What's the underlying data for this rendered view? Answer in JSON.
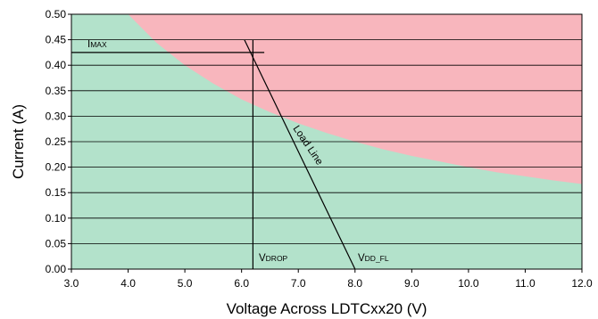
{
  "chart_data": {
    "type": "area",
    "xlabel": "Voltage Across LDTCxx20 (V)",
    "ylabel": "Current (A)",
    "xlim": [
      3.0,
      12.0
    ],
    "ylim": [
      0.0,
      0.5
    ],
    "x_ticks": [
      "3.0",
      "4.0",
      "5.0",
      "6.0",
      "7.0",
      "8.0",
      "9.0",
      "10.0",
      "11.0",
      "12.0"
    ],
    "y_ticks": [
      "0.00",
      "0.05",
      "0.10",
      "0.15",
      "0.20",
      "0.25",
      "0.30",
      "0.35",
      "0.40",
      "0.45",
      "0.50"
    ],
    "grid": "horizontal",
    "colors": {
      "safe_region": "#b3e2cb",
      "unsafe_region": "#f8b6bd",
      "lines": "#000000"
    },
    "regions": [
      {
        "label": "",
        "area": "below power limit curve",
        "color": "#b3e2cb"
      },
      {
        "label": "",
        "area": "above power limit curve",
        "color": "#f8b6bd"
      }
    ],
    "power_limit_curve": {
      "x": [
        3.0,
        3.5,
        4.0,
        4.5,
        5.0,
        5.5,
        6.0,
        6.5,
        7.0,
        7.5,
        8.0,
        8.5,
        9.0,
        9.5,
        10.0,
        10.5,
        11.0,
        11.5,
        12.0
      ],
      "y": [
        0.5,
        0.5,
        0.5,
        0.444,
        0.4,
        0.364,
        0.333,
        0.308,
        0.286,
        0.267,
        0.25,
        0.235,
        0.222,
        0.211,
        0.2,
        0.19,
        0.182,
        0.174,
        0.167
      ]
    },
    "load_line": {
      "label": "Load Line",
      "x": [
        6.05,
        8.0
      ],
      "y": [
        0.45,
        0.0
      ]
    },
    "imax_line": {
      "y": 0.425,
      "x_range": [
        3.0,
        6.4
      ]
    },
    "vdrop_line": {
      "x": 6.2,
      "y_range": [
        0.0,
        0.45
      ]
    },
    "annotations": {
      "imax_main": "I",
      "imax_sub": "MAX",
      "vdrop_main": "V",
      "vdrop_sub": "DROP",
      "vddfl_main": "V",
      "vddfl_sub": "DD_FL",
      "load_line": "Load Line"
    }
  }
}
